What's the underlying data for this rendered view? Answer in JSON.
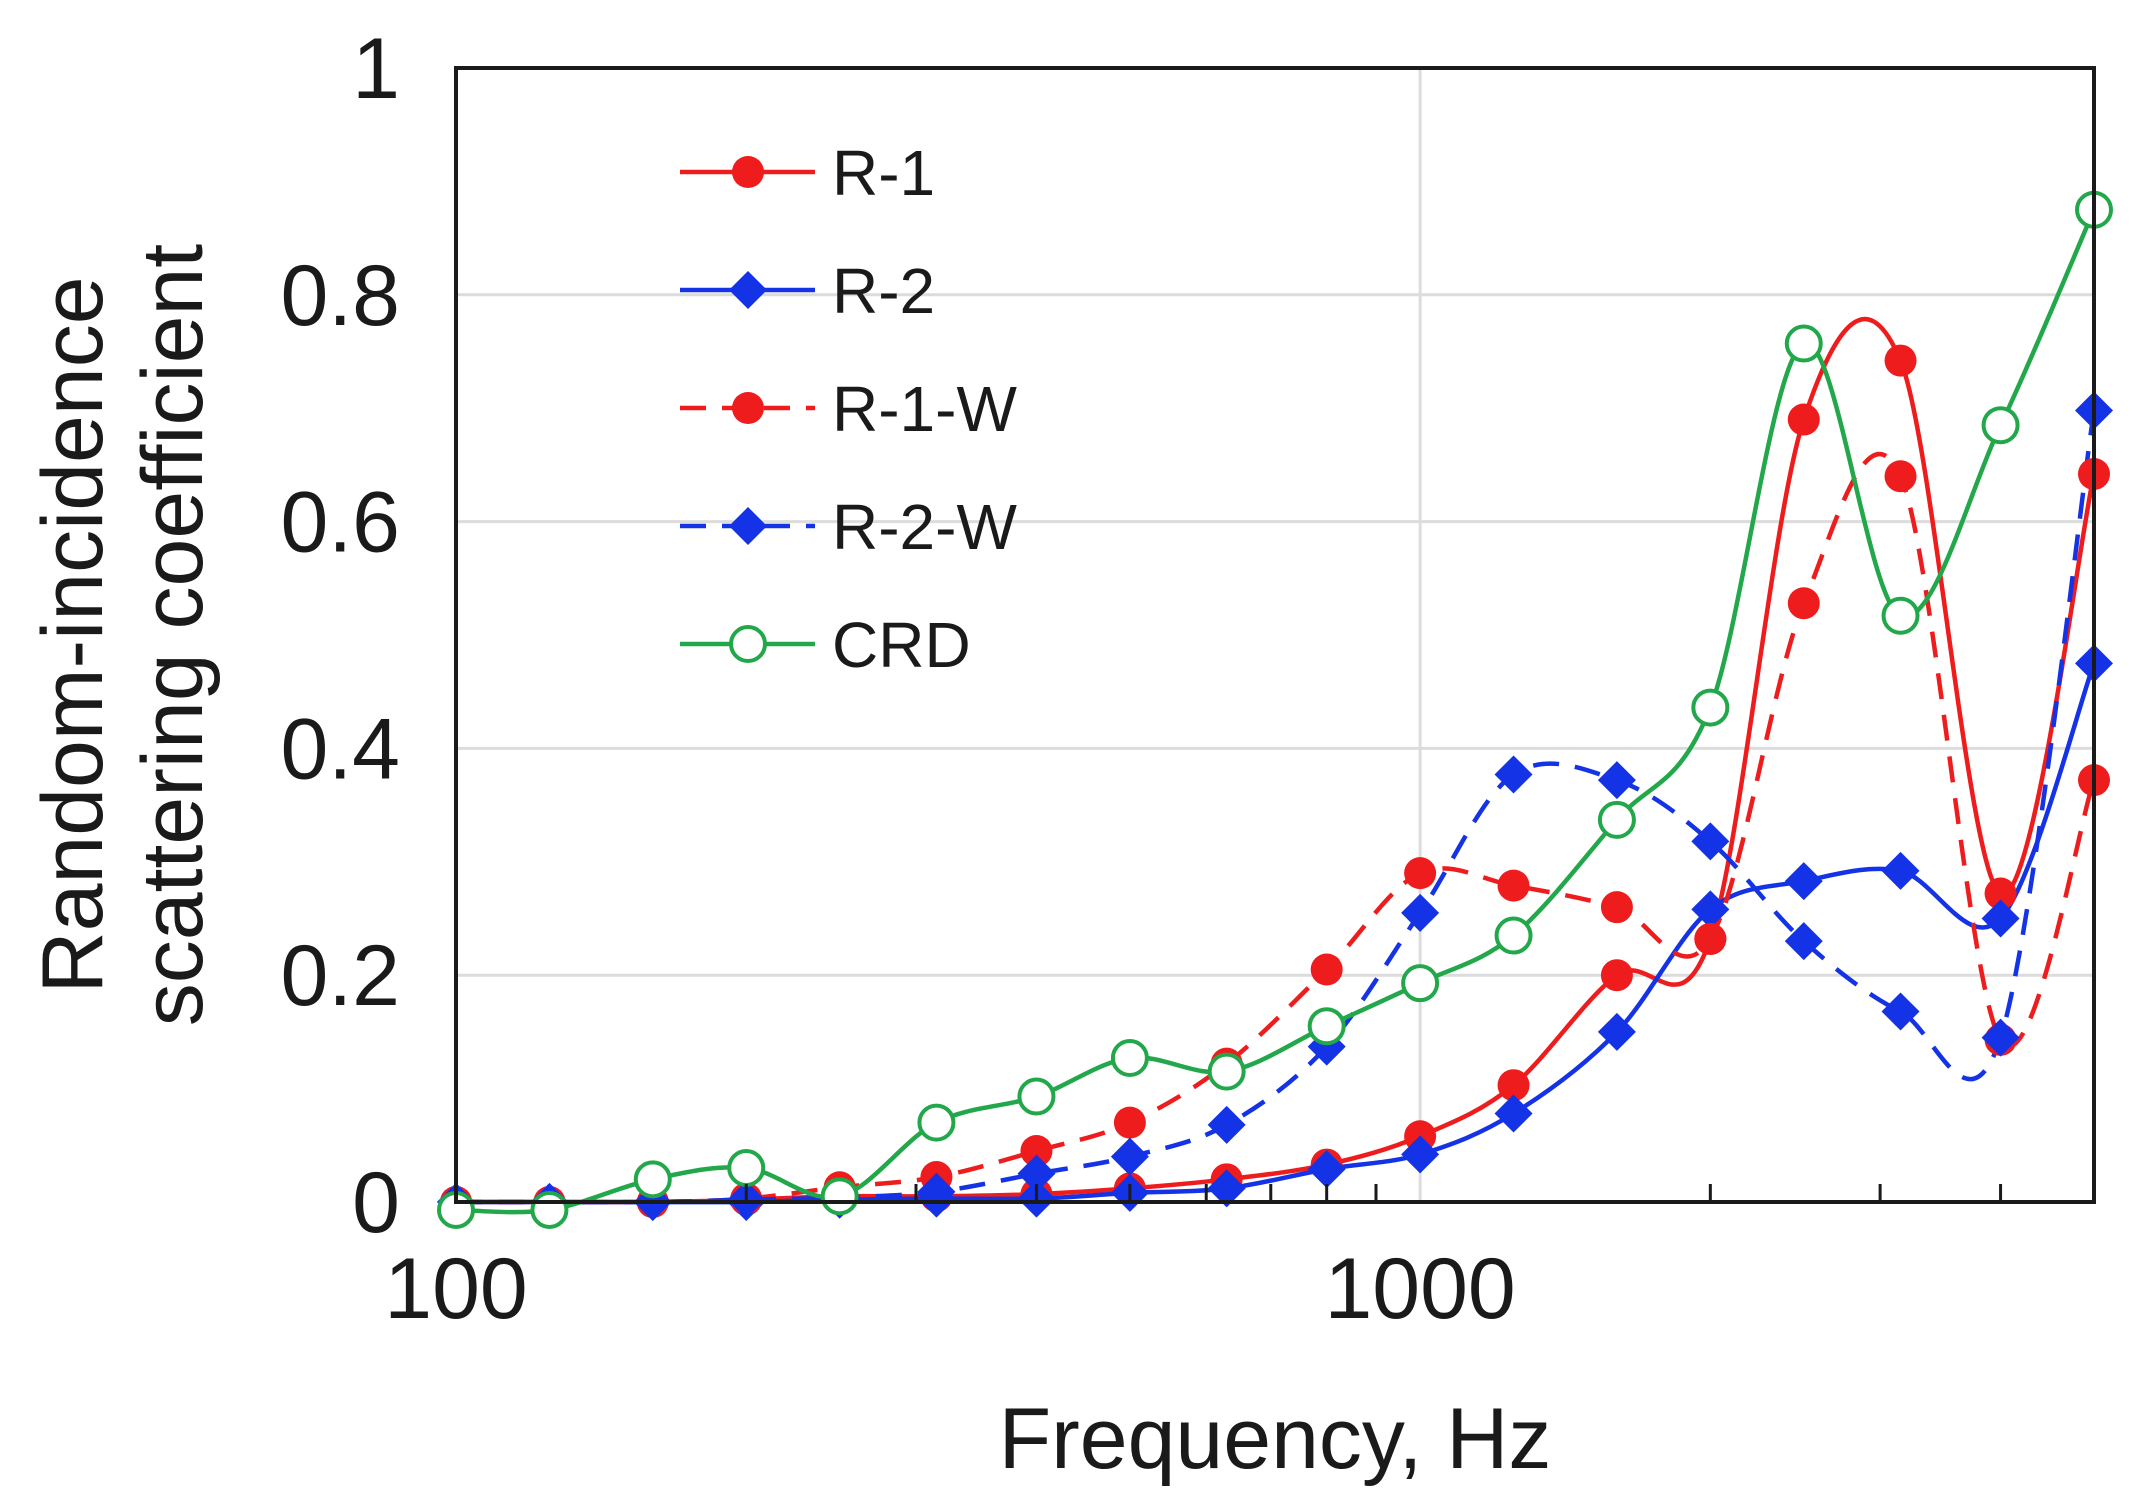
{
  "chart_data": {
    "type": "line",
    "title": "",
    "xlabel": "Frequency, Hz",
    "ylabel_lines": [
      "Random-incidence",
      "scattering coefficient"
    ],
    "xscale": "log",
    "xlim": [
      100,
      5000
    ],
    "ylim": [
      0,
      1
    ],
    "x_tick_labels": [
      "100",
      "1000"
    ],
    "y_tick_labels": [
      "0",
      "0.2",
      "0.4",
      "0.6",
      "0.8",
      "1"
    ],
    "grid": true,
    "legend_position": "top-left",
    "x": [
      100,
      125,
      160,
      200,
      250,
      315,
      400,
      500,
      630,
      800,
      1000,
      1250,
      1600,
      2000,
      2500,
      3150,
      4000,
      5000
    ],
    "series": [
      {
        "name": "R-1",
        "color": "#ee1c1c",
        "dash": "solid",
        "marker": "circle-filled",
        "values": [
          0.0,
          0.0,
          0.0,
          0.002,
          0.005,
          0.005,
          0.007,
          0.012,
          0.02,
          0.033,
          0.058,
          0.103,
          0.2,
          0.232,
          0.69,
          0.742,
          0.272,
          0.642
        ]
      },
      {
        "name": "R-2",
        "color": "#1432e6",
        "dash": "solid",
        "marker": "diamond-filled",
        "values": [
          0.0,
          0.0,
          0.0,
          0.0,
          0.002,
          0.003,
          0.003,
          0.008,
          0.012,
          0.029,
          0.042,
          0.078,
          0.15,
          0.258,
          0.283,
          0.292,
          0.25,
          0.475
        ]
      },
      {
        "name": "R-1-W",
        "color": "#ee1c1c",
        "dash": "dashed",
        "marker": "circle-filled",
        "values": [
          0.0,
          0.0,
          0.0,
          0.003,
          0.013,
          0.022,
          0.045,
          0.07,
          0.122,
          0.205,
          0.29,
          0.279,
          0.26,
          0.232,
          0.528,
          0.64,
          0.143,
          0.372
        ]
      },
      {
        "name": "R-2-W",
        "color": "#1432e6",
        "dash": "dashed",
        "marker": "diamond-filled",
        "values": [
          0.0,
          0.0,
          0.0,
          0.002,
          0.004,
          0.009,
          0.025,
          0.04,
          0.068,
          0.137,
          0.255,
          0.377,
          0.372,
          0.318,
          0.23,
          0.168,
          0.145,
          0.698
        ]
      },
      {
        "name": "CRD",
        "color": "#22a84a",
        "dash": "solid",
        "marker": "circle-open",
        "values": [
          -0.007,
          -0.007,
          0.02,
          0.03,
          0.005,
          0.07,
          0.093,
          0.127,
          0.115,
          0.155,
          0.193,
          0.235,
          0.337,
          0.436,
          0.757,
          0.517,
          0.685,
          0.875
        ]
      }
    ]
  }
}
